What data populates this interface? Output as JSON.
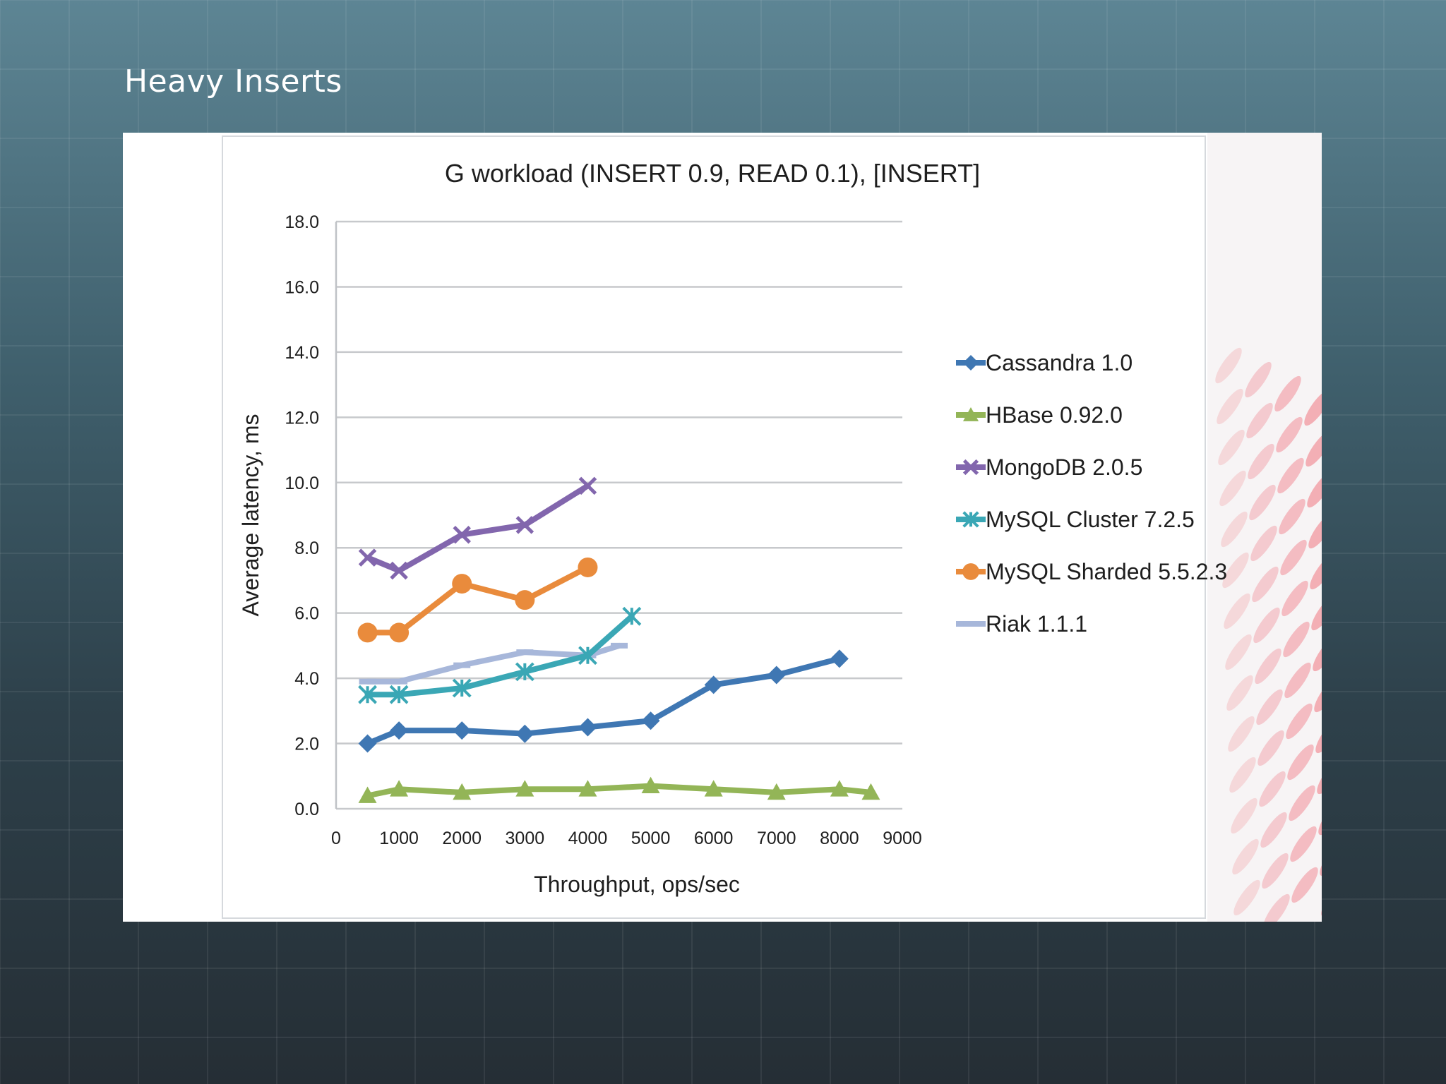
{
  "slide": {
    "title": "Heavy Inserts"
  },
  "chart_data": {
    "type": "line",
    "title": "G workload (INSERT 0.9, READ 0.1), [INSERT]",
    "xlabel": "Throughput, ops/sec",
    "ylabel": "Average latency, ms",
    "xlim": [
      0,
      9000
    ],
    "ylim": [
      0,
      18
    ],
    "x_ticks": [
      "0",
      "1000",
      "2000",
      "3000",
      "4000",
      "5000",
      "6000",
      "7000",
      "8000",
      "9000"
    ],
    "y_ticks": [
      "0.0",
      "2.0",
      "4.0",
      "6.0",
      "8.0",
      "10.0",
      "12.0",
      "14.0",
      "16.0",
      "18.0"
    ],
    "grid": "horizontal",
    "legend": "right",
    "series": [
      {
        "name": "Cassandra 1.0",
        "color": "#3f77b3",
        "marker": "diamond",
        "x": [
          500,
          1000,
          2000,
          3000,
          4000,
          5000,
          6000,
          7000,
          8000
        ],
        "y": [
          2.0,
          2.4,
          2.4,
          2.3,
          2.5,
          2.7,
          3.8,
          4.1,
          4.6
        ]
      },
      {
        "name": "HBase 0.92.0",
        "color": "#93b557",
        "marker": "triangle",
        "x": [
          500,
          1000,
          2000,
          3000,
          4000,
          5000,
          6000,
          7000,
          8000,
          8500
        ],
        "y": [
          0.4,
          0.6,
          0.5,
          0.6,
          0.6,
          0.7,
          0.6,
          0.5,
          0.6,
          0.5
        ]
      },
      {
        "name": "MongoDB 2.0.5",
        "color": "#8266ad",
        "marker": "x",
        "x": [
          500,
          1000,
          2000,
          3000,
          4000
        ],
        "y": [
          7.7,
          7.3,
          8.4,
          8.7,
          9.9
        ]
      },
      {
        "name": "MySQL Cluster 7.2.5",
        "color": "#3aa7b5",
        "marker": "asterisk",
        "x": [
          500,
          1000,
          2000,
          3000,
          4000,
          4700
        ],
        "y": [
          3.5,
          3.5,
          3.7,
          4.2,
          4.7,
          5.9
        ]
      },
      {
        "name": "MySQL Sharded 5.5.2.3",
        "color": "#e98b3c",
        "marker": "circle",
        "x": [
          500,
          1000,
          2000,
          3000,
          4000
        ],
        "y": [
          5.4,
          5.4,
          6.9,
          6.4,
          7.4
        ]
      },
      {
        "name": "Riak 1.1.1",
        "color": "#a7b7da",
        "marker": "dash",
        "x": [
          500,
          1000,
          2000,
          3000,
          4000,
          4500
        ],
        "y": [
          3.9,
          3.9,
          4.4,
          4.8,
          4.7,
          5.0
        ]
      }
    ]
  }
}
